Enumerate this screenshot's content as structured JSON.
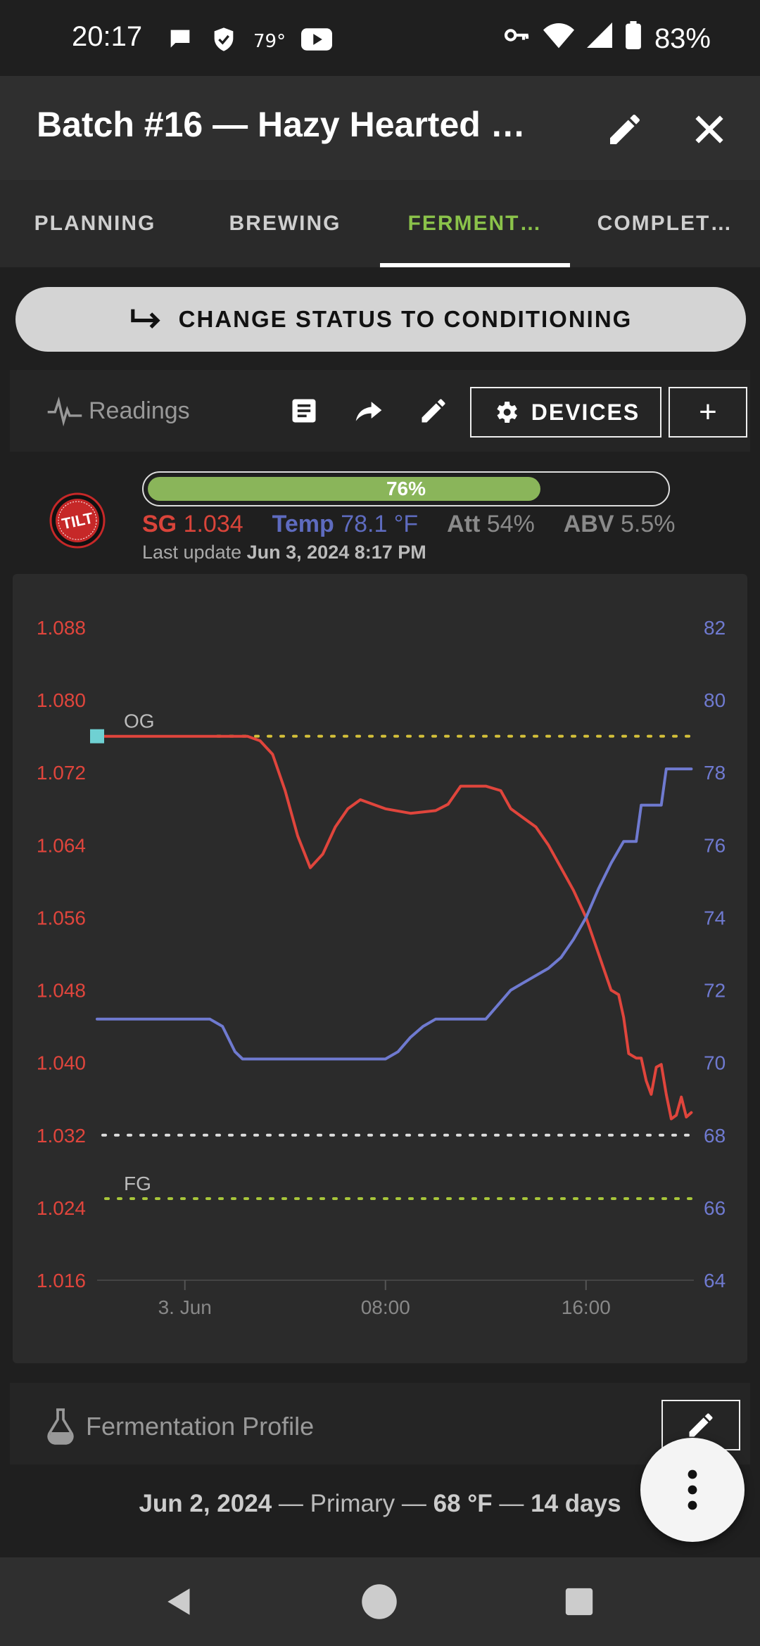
{
  "status_bar": {
    "time": "20:17",
    "weather_temp": "79°",
    "battery": "83%",
    "icons": [
      "chat-bubble-icon",
      "shield-icon",
      "youtube-icon",
      "vpn-key-icon",
      "wifi-icon",
      "signal-icon",
      "battery-icon"
    ]
  },
  "app_bar": {
    "title": "Batch #16 — Hazy Hearted …"
  },
  "tabs": [
    {
      "label": "PLANNING",
      "active": false
    },
    {
      "label": "BREWING",
      "active": false
    },
    {
      "label": "FERMENT…",
      "active": true
    },
    {
      "label": "COMPLET…",
      "active": false
    }
  ],
  "change_status": {
    "label": "CHANGE STATUS TO CONDITIONING"
  },
  "readings": {
    "label": "Readings",
    "devices_label": "DEVICES",
    "add_label": "+"
  },
  "tilt": {
    "progress_label": "76%",
    "progress_value": 0.76,
    "sg_label": "SG",
    "sg_value": "1.034",
    "temp_label": "Temp",
    "temp_value": "78.1 °F",
    "att_label": "Att",
    "att_value": "54%",
    "abv_label": "ABV",
    "abv_value": "5.5%",
    "last_update_label": "Last update",
    "last_update_value": "Jun 3, 2024 8:17 PM",
    "logo_text": "TILT"
  },
  "chart_data": {
    "type": "line",
    "title": "",
    "left_axis": {
      "ticks": [
        "1.088",
        "1.080",
        "1.072",
        "1.064",
        "1.056",
        "1.048",
        "1.040",
        "1.032",
        "1.024",
        "1.016"
      ],
      "range": [
        1.016,
        1.088
      ],
      "color": "#e0453c"
    },
    "right_axis": {
      "ticks": [
        "82",
        "80",
        "78",
        "76",
        "74",
        "72",
        "70",
        "68",
        "66",
        "64"
      ],
      "range": [
        64,
        82
      ],
      "color": "#6f7ad0"
    },
    "x_ticks": [
      {
        "label": "3. Jun",
        "hour": 0
      },
      {
        "label": "08:00",
        "hour": 8
      },
      {
        "label": "16:00",
        "hour": 16
      }
    ],
    "x_range_hours": [
      -3.5,
      20.3
    ],
    "annotations": [
      {
        "label": "OG",
        "value": 1.076,
        "color": "#d4c03a"
      },
      {
        "label": "FG",
        "value": 1.025,
        "color": "#a8c63a"
      }
    ],
    "target_line": {
      "value": 1.032,
      "color": "#dddddd"
    },
    "series": [
      {
        "axis": "left",
        "color": "#e0453c",
        "points": [
          [
            -3.5,
            1.076
          ],
          [
            -1,
            1.076
          ],
          [
            1,
            1.076
          ],
          [
            2.5,
            1.076
          ],
          [
            3,
            1.0755
          ],
          [
            3.5,
            1.074
          ],
          [
            4,
            1.07
          ],
          [
            4.5,
            1.065
          ],
          [
            5,
            1.0615
          ],
          [
            5.5,
            1.063
          ],
          [
            6,
            1.066
          ],
          [
            6.5,
            1.068
          ],
          [
            7,
            1.069
          ],
          [
            8,
            1.068
          ],
          [
            9,
            1.0675
          ],
          [
            10,
            1.0678
          ],
          [
            10.5,
            1.0685
          ],
          [
            11,
            1.0705
          ],
          [
            12,
            1.0705
          ],
          [
            12.6,
            1.07
          ],
          [
            13,
            1.068
          ],
          [
            13.5,
            1.067
          ],
          [
            14,
            1.066
          ],
          [
            14.5,
            1.064
          ],
          [
            15,
            1.0615
          ],
          [
            15.5,
            1.059
          ],
          [
            16,
            1.056
          ],
          [
            16.5,
            1.052
          ],
          [
            17,
            1.048
          ],
          [
            17.3,
            1.0475
          ],
          [
            17.5,
            1.045
          ],
          [
            17.7,
            1.041
          ],
          [
            18,
            1.0405
          ],
          [
            18.2,
            1.0405
          ],
          [
            18.4,
            1.038
          ],
          [
            18.6,
            1.0365
          ],
          [
            18.8,
            1.0395
          ],
          [
            19,
            1.0398
          ],
          [
            19.2,
            1.0365
          ],
          [
            19.4,
            1.0338
          ],
          [
            19.6,
            1.0342
          ],
          [
            19.8,
            1.0362
          ],
          [
            20,
            1.034
          ],
          [
            20.2,
            1.0345
          ]
        ]
      },
      {
        "axis": "right",
        "color": "#6f7ad0",
        "points": [
          [
            -3.5,
            71.2
          ],
          [
            1,
            71.2
          ],
          [
            1.5,
            71
          ],
          [
            2,
            70.3
          ],
          [
            2.3,
            70.1
          ],
          [
            4,
            70.1
          ],
          [
            6,
            70.1
          ],
          [
            8,
            70.1
          ],
          [
            8.5,
            70.3
          ],
          [
            9,
            70.7
          ],
          [
            9.5,
            71
          ],
          [
            10,
            71.2
          ],
          [
            12,
            71.2
          ],
          [
            12.5,
            71.6
          ],
          [
            13,
            72.0
          ],
          [
            13.5,
            72.2
          ],
          [
            14,
            72.4
          ],
          [
            14.5,
            72.6
          ],
          [
            15,
            72.9
          ],
          [
            15.5,
            73.4
          ],
          [
            16,
            74.0
          ],
          [
            16.5,
            74.8
          ],
          [
            17,
            75.5
          ],
          [
            17.5,
            76.1
          ],
          [
            18,
            76.1
          ],
          [
            18.2,
            77.1
          ],
          [
            19,
            77.1
          ],
          [
            19.2,
            78.1
          ],
          [
            20.2,
            78.1
          ]
        ]
      }
    ]
  },
  "fermentation": {
    "label": "Fermentation Profile",
    "date": "Jun 2, 2024",
    "sep1": " — Primary — ",
    "temp": "68 °F",
    "sep2": " — ",
    "days": "14 days"
  }
}
